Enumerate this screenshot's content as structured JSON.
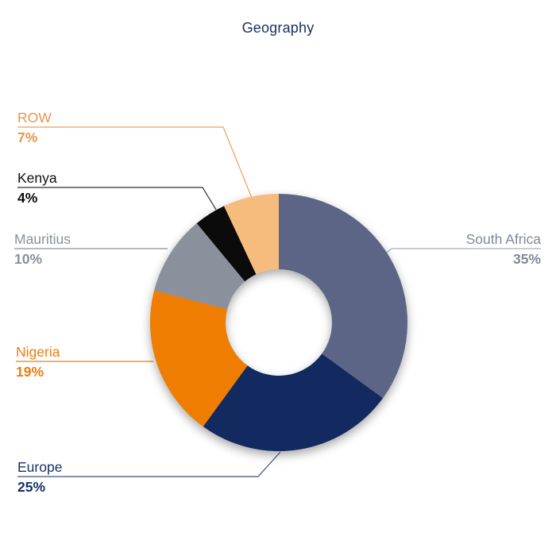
{
  "chart_data": {
    "type": "pie",
    "subtype": "donut",
    "title": "Geography",
    "title_color": "#16305F",
    "unit": "%",
    "categories": [
      "South Africa",
      "Europe",
      "Nigeria",
      "Mauritius",
      "Kenya",
      "ROW"
    ],
    "values": [
      35,
      25,
      19,
      10,
      4,
      7
    ],
    "slices": [
      {
        "label": "South Africa",
        "value": 35,
        "pct_label": "35%",
        "color": "#5C6586",
        "label_color": "#81879B",
        "line_color": "#A9AEBB"
      },
      {
        "label": "Europe",
        "value": 25,
        "pct_label": "25%",
        "color": "#132A60",
        "label_color": "#16305F",
        "line_color": "#3D5078"
      },
      {
        "label": "Nigeria",
        "value": 19,
        "pct_label": "19%",
        "color": "#EE7D01",
        "label_color": "#ED7D0C",
        "line_color": "#ED7D0C"
      },
      {
        "label": "Mauritius",
        "value": 10,
        "pct_label": "10%",
        "color": "#8B909D",
        "label_color": "#8A8F9B",
        "line_color": "#8A8F9B"
      },
      {
        "label": "Kenya",
        "value": 4,
        "pct_label": "4%",
        "color": "#0B0B0B",
        "label_color": "#0B0B0B",
        "line_color": "#2E2E2E"
      },
      {
        "label": "ROW",
        "value": 7,
        "pct_label": "7%",
        "color": "#F6BC7E",
        "label_color": "#E9964C",
        "line_color": "#E9A058"
      }
    ],
    "layout_hints": {
      "start_angle_deg": 0,
      "direction": "clockwise",
      "legend": "none",
      "labels": "outside-with-leader-lines"
    }
  }
}
